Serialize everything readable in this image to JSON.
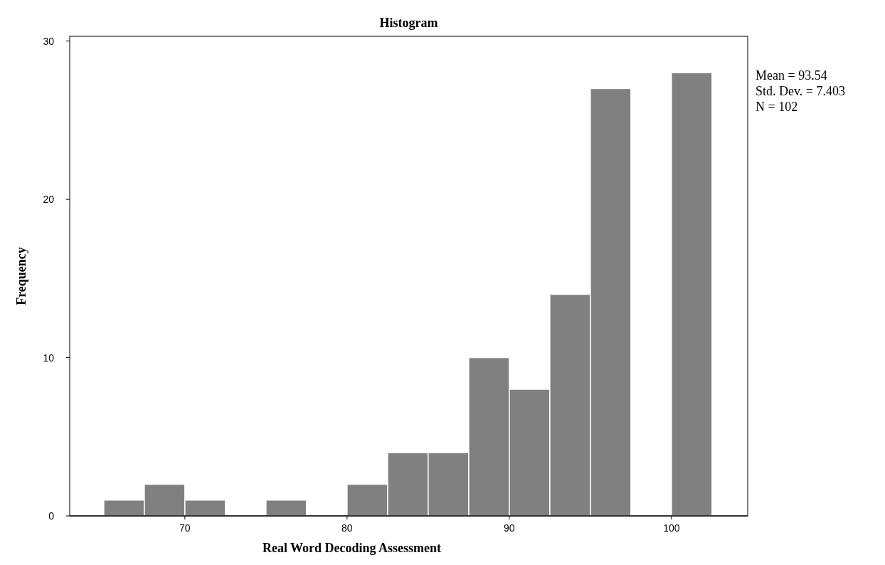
{
  "chart_data": {
    "type": "histogram",
    "title": "Histogram",
    "xlabel": "Real Word Decoding Assessment",
    "ylabel": "Frequency",
    "bins": [
      65,
      67.5,
      70,
      72.5,
      75,
      77.5,
      80,
      82.5,
      85,
      87.5,
      90,
      92.5,
      95,
      97.5,
      100,
      102.5
    ],
    "values": [
      1,
      2,
      1,
      0,
      1,
      0,
      2,
      4,
      4,
      10,
      8,
      14,
      27,
      0,
      28
    ],
    "color": "#808080",
    "xlim": [
      62.9,
      104.7
    ],
    "xticks": [
      70,
      80,
      90,
      100
    ],
    "ylim": [
      0,
      30.3
    ],
    "yticks": [
      0,
      10,
      20,
      30
    ],
    "grid": false,
    "annotations": [
      "Mean = 93.54",
      "Std. Dev. = 7.403",
      "N = 102"
    ]
  }
}
